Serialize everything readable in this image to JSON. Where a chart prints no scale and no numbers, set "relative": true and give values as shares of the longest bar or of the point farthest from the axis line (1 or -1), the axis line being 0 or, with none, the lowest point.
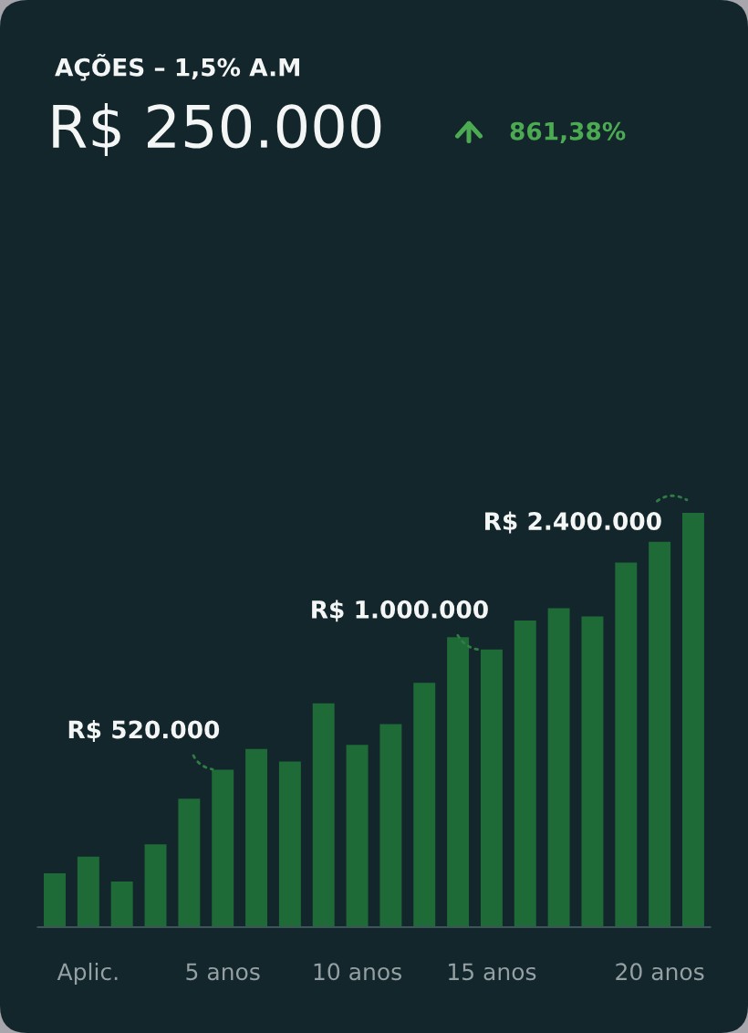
{
  "chart_data": {
    "type": "bar",
    "title": "AÇÕES – 1,5% A.M",
    "subtitle": "R$ 250.000",
    "categories": [
      null,
      "Aplic.",
      null,
      null,
      null,
      "5 anos",
      null,
      null,
      null,
      "10 anos",
      null,
      null,
      null,
      "15 anos",
      null,
      null,
      null,
      null,
      "20 anos",
      null
    ],
    "values": [
      0.13,
      0.17,
      0.11,
      0.2,
      0.31,
      0.38,
      0.43,
      0.4,
      0.54,
      0.44,
      0.49,
      0.59,
      0.7,
      0.67,
      0.74,
      0.77,
      0.75,
      0.88,
      0.93,
      1
    ],
    "relative": true,
    "color": "#1f6b37",
    "annotations": [
      "861,38%",
      {
        "text": "R$ 520.000",
        "x": "5 anos",
        "y": 0.38
      },
      {
        "text": "R$ 1.000.000",
        "x": "15 anos",
        "y": 0.67
      },
      "R$ 2.400.000"
    ]
  }
}
